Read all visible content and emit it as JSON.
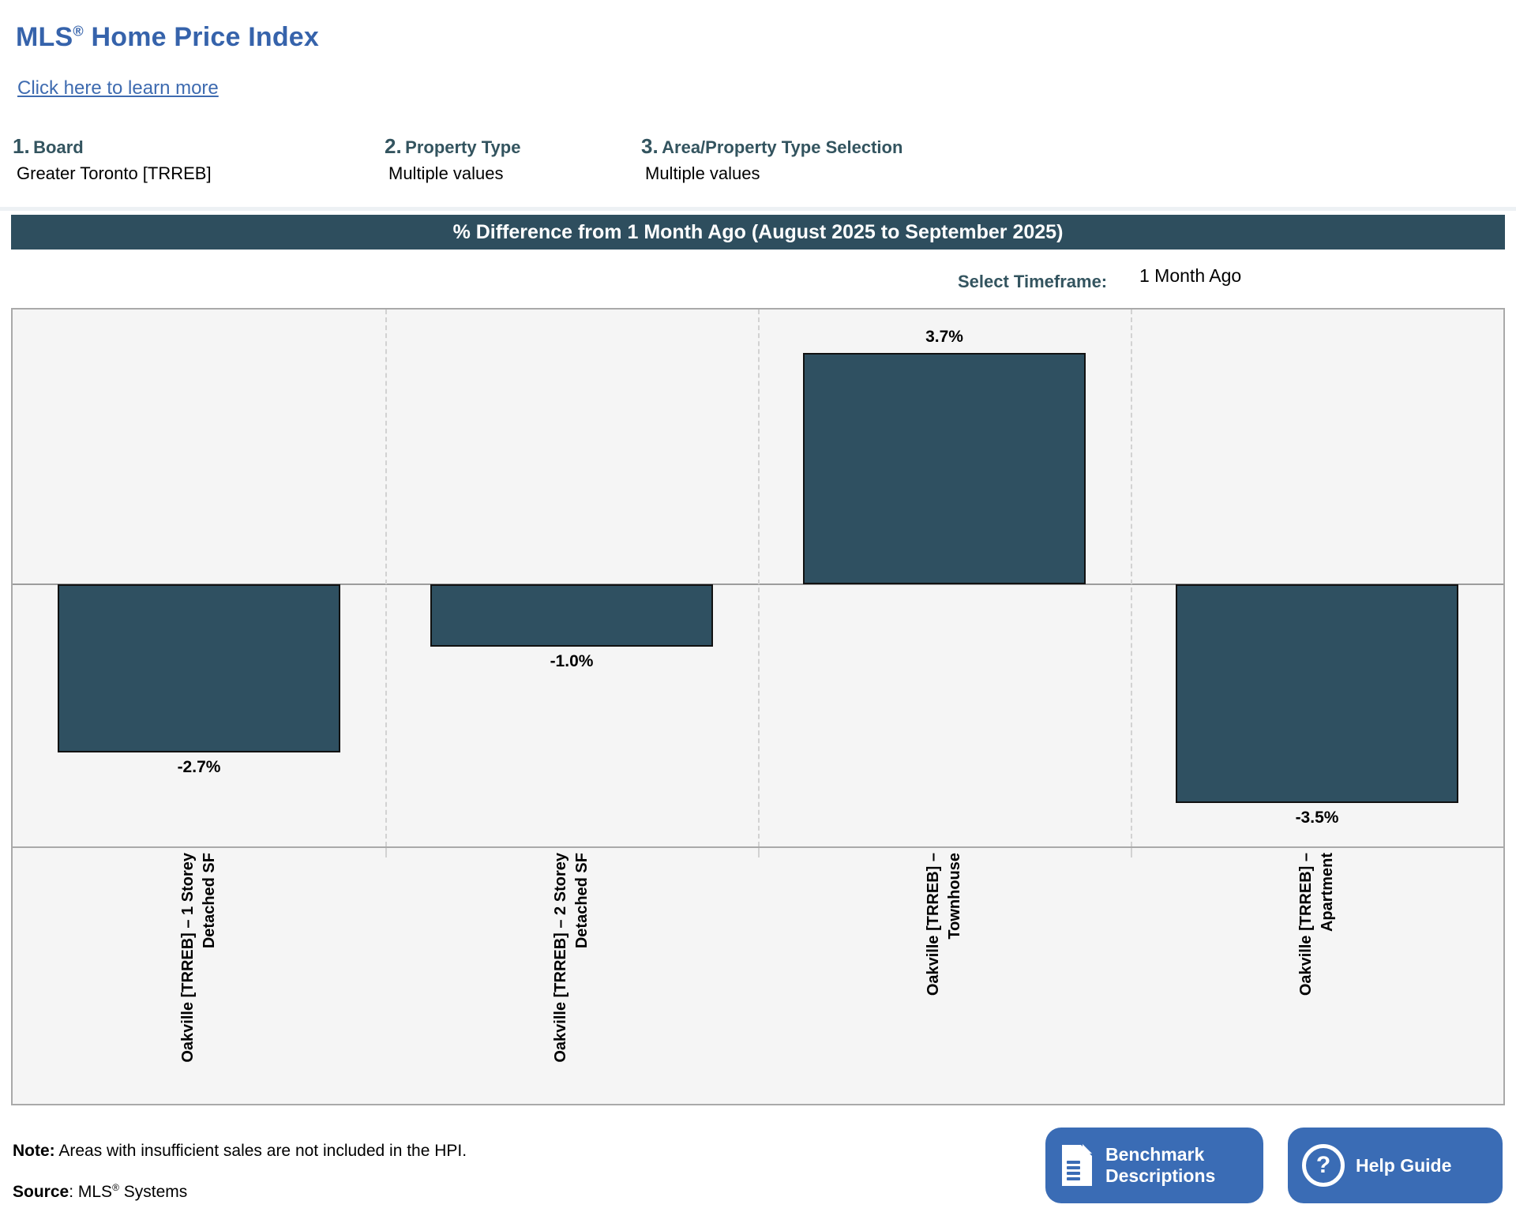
{
  "header": {
    "title_prefix": "MLS",
    "title_reg": "®",
    "title_suffix": " Home Price Index",
    "learn_more": "Click here to learn more"
  },
  "filters": [
    {
      "number": "1.",
      "label": "Board",
      "value": "Greater Toronto [TRREB]"
    },
    {
      "number": "2.",
      "label": "Property Type",
      "value": "Multiple values"
    },
    {
      "number": "3.",
      "label": "Area/Property Type Selection",
      "value": "Multiple values"
    }
  ],
  "banner": {
    "title": "% Difference from 1 Month Ago (August 2025 to September 2025)"
  },
  "timeframe": {
    "label": "Select Timeframe:",
    "value": "1 Month Ago"
  },
  "chart_data": {
    "type": "bar",
    "title": "% Difference from 1 Month Ago (August 2025 to September 2025)",
    "categories": [
      "Oakville [TRREB] – 1 Storey\nDetached SF",
      "Oakville [TRREB] – 2 Storey\nDetached SF",
      "Oakville [TRREB] –\nTownhouse",
      "Oakville [TRREB] –\nApartment"
    ],
    "values": [
      -2.7,
      -1.0,
      3.7,
      -3.5
    ],
    "data_labels": [
      "-2.7%",
      "-1.0%",
      "3.7%",
      "-3.5%"
    ],
    "unit": "percent",
    "ylim": [
      -4.2,
      4.4
    ],
    "grid": "vertical-dashed-column-dividers",
    "legend": "none",
    "bar_color": "#2F5061",
    "bar_border_color": "#111111",
    "plot_bg": "#F5F5F5"
  },
  "footer": {
    "note_label": "Note:",
    "note_text": "Areas with insufficient sales are not included in the HPI.",
    "source_label": "Source",
    "source_mid": ": MLS",
    "source_reg": "®",
    "source_suffix": " Systems"
  },
  "buttons": {
    "benchmark": {
      "line1": "Benchmark",
      "line2": "Descriptions",
      "icon": "document-icon"
    },
    "help": {
      "label": "Help Guide",
      "icon": "question-icon"
    }
  },
  "colors": {
    "title_blue": "#3663AB",
    "teal_text": "#33545F",
    "banner_bg": "#2E4E5E",
    "bar_fill": "#2F5061",
    "button_blue": "#3A6CB5",
    "plot_bg": "#F5F5F5"
  }
}
